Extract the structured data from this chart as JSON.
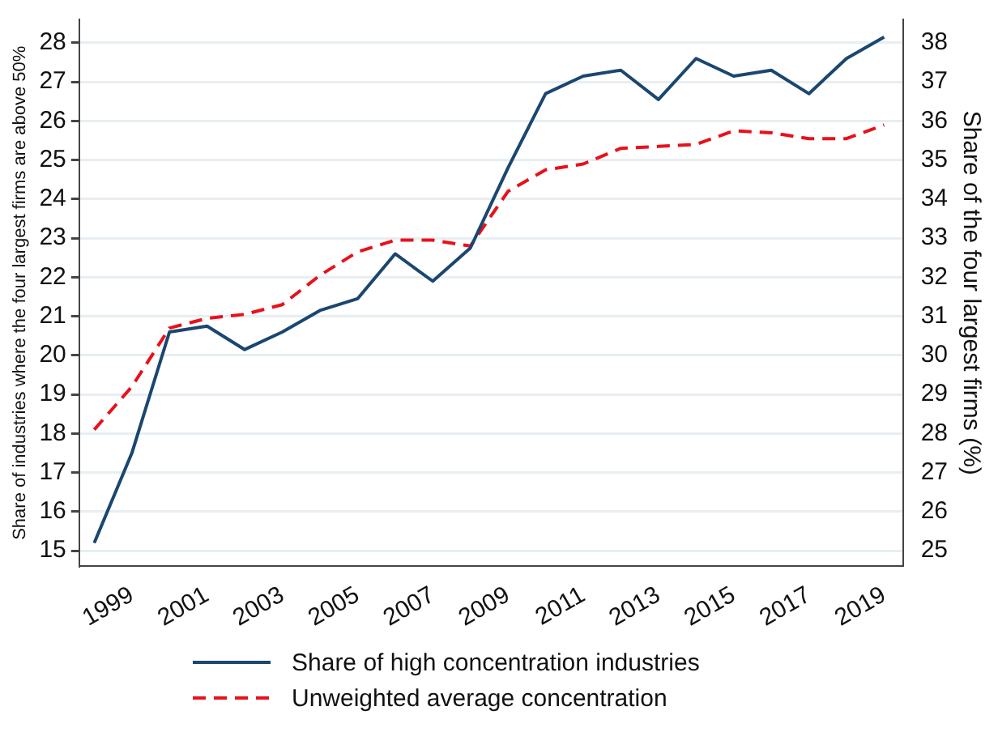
{
  "chart_data": {
    "type": "line",
    "ylabel": "Share of industries where the four largest firms are above 50%",
    "y2label": "Share of the four largest firms (%)",
    "x": [
      1998,
      1999,
      2000,
      2001,
      2002,
      2003,
      2004,
      2005,
      2006,
      2007,
      2008,
      2009,
      2010,
      2011,
      2012,
      2013,
      2014,
      2015,
      2016,
      2017,
      2018,
      2019
    ],
    "series": [
      {
        "name": "Share of high concentration industries",
        "color": "#1a476f",
        "line_style": "solid",
        "values": [
          15.2,
          17.5,
          20.6,
          20.75,
          20.15,
          20.6,
          21.15,
          21.45,
          22.6,
          21.9,
          22.75,
          24.8,
          26.7,
          27.15,
          27.3,
          26.55,
          27.6,
          27.15,
          27.3,
          26.7,
          27.6,
          28.15
        ]
      },
      {
        "name": "Unweighted average concentration",
        "color": "#e8111a",
        "line_style": "dashed",
        "axis": "y2",
        "values": [
          28.1,
          29.2,
          30.7,
          30.95,
          31.05,
          31.3,
          32.05,
          32.65,
          32.95,
          32.95,
          32.8,
          34.2,
          34.75,
          34.9,
          35.3,
          35.35,
          35.4,
          35.75,
          35.7,
          35.55,
          35.55,
          35.9
        ]
      }
    ],
    "xlim": [
      1997.6,
      2019.5
    ],
    "xticks": [
      1999,
      2001,
      2003,
      2005,
      2007,
      2009,
      2011,
      2013,
      2015,
      2017,
      2019
    ],
    "ylim": [
      14.6,
      28.6
    ],
    "yticks": [
      15,
      16,
      17,
      18,
      19,
      20,
      21,
      22,
      23,
      24,
      25,
      26,
      27,
      28
    ],
    "y2lim": [
      24.6,
      38.6
    ],
    "y2ticks": [
      25,
      26,
      27,
      28,
      29,
      30,
      31,
      32,
      33,
      34,
      35,
      36,
      37,
      38
    ],
    "grid": "y",
    "legend": "bottom",
    "marker": "none"
  }
}
